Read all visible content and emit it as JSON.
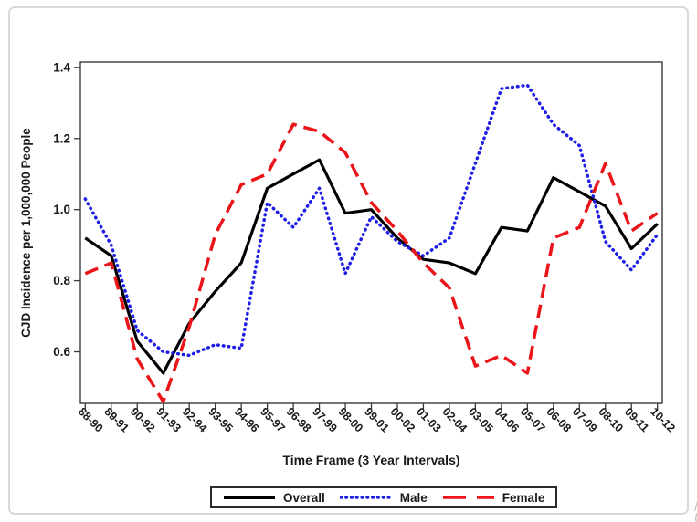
{
  "chart_data": {
    "type": "line",
    "title": "",
    "xlabel": "Time Frame (3 Year Intervals)",
    "ylabel": "CJD Incidence per 1,000,000 People",
    "categories": [
      "88-90",
      "89-91",
      "90-92",
      "91-93",
      "92-94",
      "93-95",
      "94-96",
      "95-97",
      "96-98",
      "97-99",
      "98-00",
      "99-01",
      "00-02",
      "01-03",
      "02-04",
      "03-05",
      "04-06",
      "05-07",
      "06-08",
      "07-09",
      "08-10",
      "09-11",
      "10-12"
    ],
    "series": [
      {
        "name": "Overall",
        "color": "#000000",
        "style": "solid",
        "values": [
          0.92,
          0.87,
          0.63,
          0.54,
          0.68,
          0.77,
          0.85,
          1.06,
          1.1,
          1.14,
          0.99,
          1.0,
          0.92,
          0.86,
          0.85,
          0.82,
          0.95,
          0.94,
          1.09,
          1.05,
          1.01,
          0.89,
          0.96
        ]
      },
      {
        "name": "Male",
        "color": "#1E1EE6",
        "style": "dotted",
        "values": [
          1.03,
          0.9,
          0.66,
          0.6,
          0.59,
          0.62,
          0.61,
          1.02,
          0.95,
          1.06,
          0.82,
          0.98,
          0.91,
          0.87,
          0.92,
          1.13,
          1.34,
          1.35,
          1.24,
          1.18,
          0.91,
          0.83,
          0.93
        ]
      },
      {
        "name": "Female",
        "color": "#EB1419",
        "style": "dashed",
        "values": [
          0.82,
          0.85,
          0.58,
          0.46,
          0.67,
          0.93,
          1.07,
          1.1,
          1.24,
          1.22,
          1.16,
          1.02,
          0.94,
          0.85,
          0.78,
          0.56,
          0.59,
          0.54,
          0.92,
          0.95,
          1.13,
          0.94,
          0.99
        ]
      }
    ],
    "yticks": [
      0.6,
      0.8,
      1.0,
      1.2,
      1.4
    ],
    "ylim": [
      0.455,
      1.415
    ],
    "grid": false,
    "legend_position": "bottom-center"
  },
  "decor": {
    "corner_mark": "/\n("
  }
}
